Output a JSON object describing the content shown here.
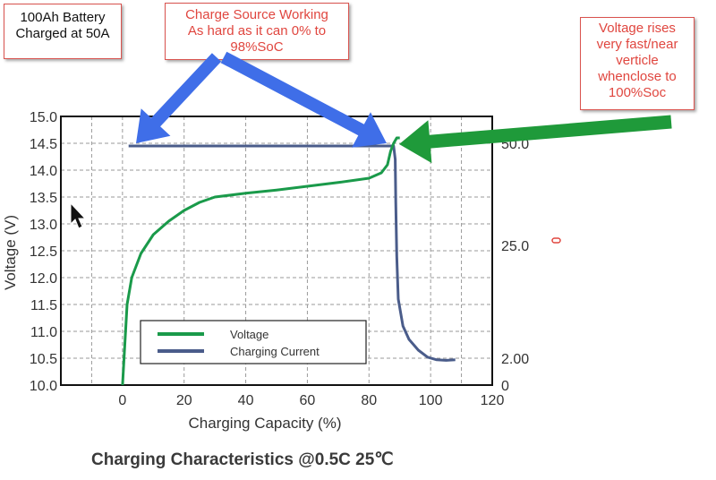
{
  "callouts": {
    "battery": [
      "100Ah Battery",
      "Charged at 50A"
    ],
    "source": [
      "Charge Source Working",
      "As hard as it can 0% to",
      "98%SoC"
    ],
    "voltage": [
      "Voltage rises",
      "very fast/near",
      "verticle",
      "whenclose to",
      "100%Soc"
    ]
  },
  "footer_title": "Charging Characteristics @0.5C 25℃",
  "colors": {
    "voltage": "#1a9a4a",
    "current": "#4a5c8a",
    "arrow_blue": "#3f6ee8",
    "arrow_green": "#1f9a3a",
    "callout_border": "#d9534f"
  },
  "chart_data": {
    "type": "line",
    "xlabel": "Charging Capacity (%)",
    "ylabel": "Voltage (V)",
    "xlim": [
      -20,
      120
    ],
    "ylim": [
      10.0,
      15.0
    ],
    "x_ticks": [
      "0",
      "20",
      "40",
      "60",
      "80",
      "100",
      "120"
    ],
    "y_ticks": [
      "10.0",
      "10.5",
      "11.0",
      "11.5",
      "12.0",
      "12.5",
      "13.0",
      "13.5",
      "14.0",
      "14.5",
      "15.0"
    ],
    "right_axis_ticks": [
      "50.0",
      "25.0",
      "2.00",
      "0"
    ],
    "grid": true,
    "legend": "bottom-center",
    "series": [
      {
        "name": "Voltage",
        "points": [
          [
            0,
            10.0
          ],
          [
            1.5,
            11.5
          ],
          [
            3,
            12.0
          ],
          [
            6,
            12.45
          ],
          [
            10,
            12.8
          ],
          [
            15,
            13.05
          ],
          [
            20,
            13.25
          ],
          [
            25,
            13.4
          ],
          [
            30,
            13.5
          ],
          [
            40,
            13.57
          ],
          [
            50,
            13.63
          ],
          [
            60,
            13.7
          ],
          [
            70,
            13.77
          ],
          [
            80,
            13.85
          ],
          [
            84,
            13.95
          ],
          [
            86,
            14.1
          ],
          [
            87,
            14.35
          ],
          [
            88,
            14.5
          ],
          [
            89,
            14.6
          ],
          [
            90,
            14.6
          ]
        ]
      },
      {
        "name": "Charging Current",
        "points": [
          [
            2,
            14.45
          ],
          [
            88,
            14.45
          ],
          [
            88.5,
            14.2
          ],
          [
            88.7,
            13.4
          ],
          [
            89,
            12.4
          ],
          [
            89.5,
            11.6
          ],
          [
            91,
            11.1
          ],
          [
            93,
            10.85
          ],
          [
            96,
            10.65
          ],
          [
            99,
            10.52
          ],
          [
            102,
            10.47
          ],
          [
            105,
            10.46
          ],
          [
            108,
            10.47
          ]
        ]
      }
    ]
  }
}
